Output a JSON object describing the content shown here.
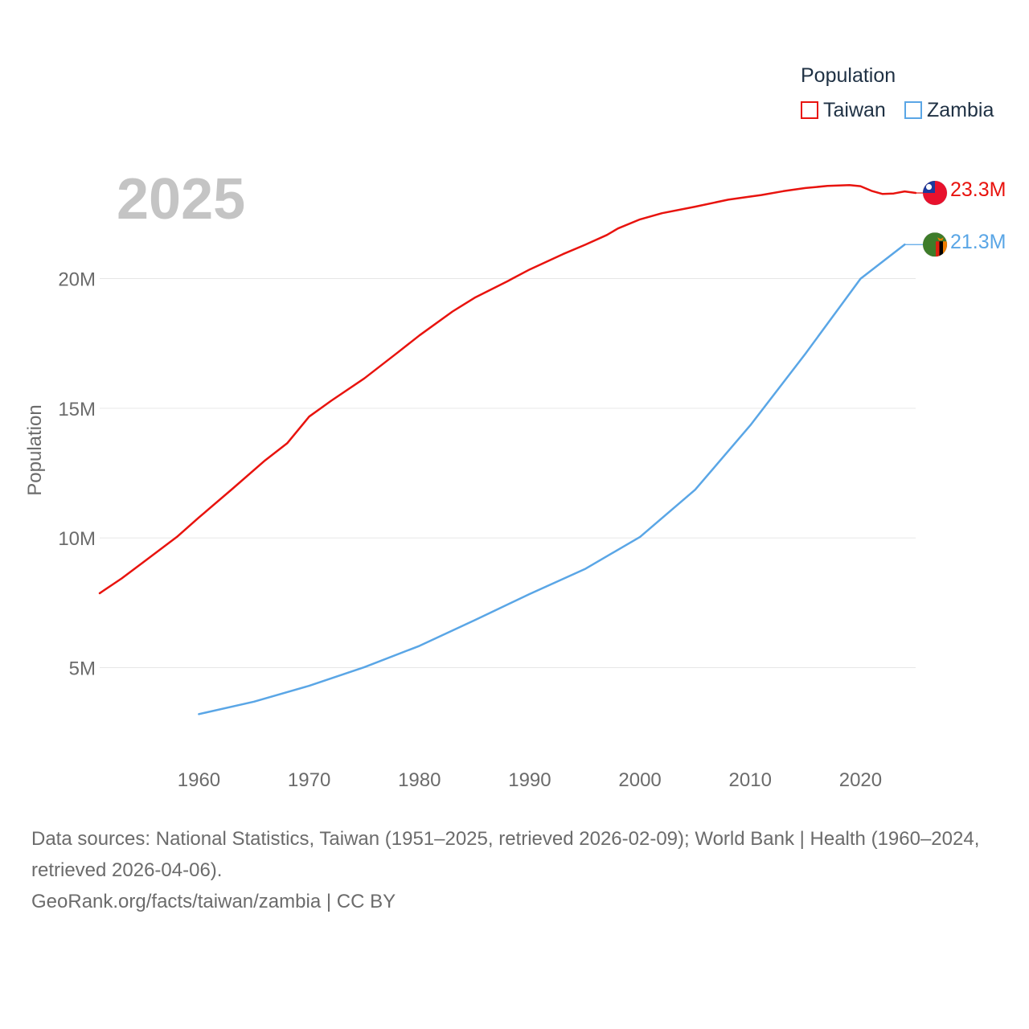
{
  "legend": {
    "title": "Population",
    "items": [
      {
        "label": "Taiwan",
        "color": "#e8130e"
      },
      {
        "label": "Zambia",
        "color": "#5aa6e6"
      }
    ]
  },
  "year_label": "2025",
  "end_labels": {
    "taiwan": "23.3M",
    "zambia": "21.3M"
  },
  "flags": {
    "taiwan": "taiwan-flag-icon",
    "zambia": "zambia-flag-icon"
  },
  "footer": {
    "line1": "Data sources: National Statistics, Taiwan (1951–2025, retrieved 2026-02-09); World Bank | Health (1960–2024, retrieved 2026-04-06).",
    "line2": "GeoRank.org/facts/taiwan/zambia | CC BY"
  },
  "chart_data": {
    "type": "line",
    "title": "",
    "xlabel": "",
    "ylabel": "Population",
    "xlim": [
      1951,
      2025
    ],
    "ylim": [
      2000000,
      26000000
    ],
    "x_ticks": [
      1960,
      1970,
      1980,
      1990,
      2000,
      2010,
      2020
    ],
    "x_tick_labels": [
      "1960",
      "1970",
      "1980",
      "1990",
      "2000",
      "2010",
      "2020"
    ],
    "y_ticks": [
      5000000,
      10000000,
      15000000,
      20000000
    ],
    "y_tick_labels": [
      "5M",
      "10M",
      "15M",
      "20M"
    ],
    "grid": true,
    "legend": "top-right",
    "series": [
      {
        "name": "Taiwan",
        "color": "#e8130e",
        "x": [
          1951,
          1953,
          1955,
          1958,
          1960,
          1963,
          1966,
          1968,
          1970,
          1972,
          1975,
          1978,
          1980,
          1983,
          1985,
          1988,
          1990,
          1993,
          1995,
          1997,
          1998,
          2000,
          2002,
          2005,
          2008,
          2010,
          2011,
          2013,
          2015,
          2017,
          2019,
          2020,
          2021,
          2022,
          2023,
          2024,
          2025
        ],
        "y": [
          7870000,
          8440000,
          9080000,
          10040000,
          10790000,
          11880000,
          12990000,
          13650000,
          14680000,
          15290000,
          16150000,
          17140000,
          17810000,
          18730000,
          19260000,
          19900000,
          20350000,
          20940000,
          21300000,
          21680000,
          21930000,
          22280000,
          22520000,
          22770000,
          23040000,
          23160000,
          23220000,
          23370000,
          23490000,
          23570000,
          23600000,
          23560000,
          23380000,
          23260000,
          23280000,
          23360000,
          23300000
        ]
      },
      {
        "name": "Zambia",
        "color": "#5aa6e6",
        "x": [
          1960,
          1965,
          1970,
          1975,
          1980,
          1985,
          1990,
          1995,
          2000,
          2005,
          2010,
          2015,
          2020,
          2024
        ],
        "y": [
          3210000,
          3690000,
          4300000,
          5020000,
          5840000,
          6830000,
          7840000,
          8800000,
          10040000,
          11860000,
          14340000,
          17100000,
          19990000,
          21310000
        ]
      }
    ]
  }
}
